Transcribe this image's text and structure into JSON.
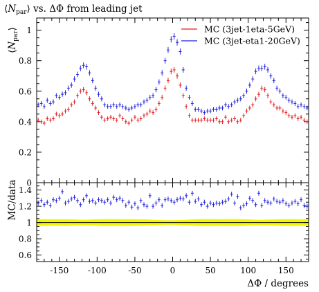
{
  "chart_data": [
    {
      "type": "scatter",
      "panel": "main",
      "title": "⟨N_par⟩ vs. ΔΦ from leading jet",
      "title_parts": {
        "lhs": "⟨",
        "sym": "N",
        "sub": "par",
        "rhs": "⟩ vs. ΔΦ from leading jet"
      },
      "ylabel": "⟨N_par⟩",
      "ylabel_parts": {
        "lhs": "⟨",
        "sym": "N",
        "sub": "par",
        "rhs": "⟩"
      },
      "ylim": [
        0,
        1.08
      ],
      "yticks": [
        "0",
        "0.2",
        "0.4",
        "0.6",
        "0.8",
        "1"
      ],
      "legend_position": "top-right",
      "series": [
        {
          "name": "MC (3jet-1eta-5GeV)",
          "color": "#e41a1c",
          "x": [
            -178,
            -174,
            -170,
            -166,
            -162,
            -158,
            -154,
            -150,
            -146,
            -142,
            -138,
            -134,
            -130,
            -126,
            -122,
            -118,
            -114,
            -110,
            -106,
            -102,
            -98,
            -94,
            -90,
            -86,
            -82,
            -78,
            -74,
            -70,
            -66,
            -62,
            -58,
            -54,
            -50,
            -46,
            -42,
            -38,
            -34,
            -30,
            -26,
            -22,
            -18,
            -14,
            -10,
            -6,
            -2,
            2,
            6,
            10,
            14,
            18,
            22,
            26,
            30,
            34,
            38,
            42,
            46,
            50,
            54,
            58,
            62,
            66,
            70,
            74,
            78,
            82,
            86,
            90,
            94,
            98,
            102,
            106,
            110,
            114,
            118,
            122,
            126,
            130,
            134,
            138,
            142,
            146,
            150,
            154,
            158,
            162,
            166,
            170,
            174,
            178
          ],
          "values": [
            0.41,
            0.4,
            0.39,
            0.42,
            0.41,
            0.42,
            0.45,
            0.44,
            0.45,
            0.47,
            0.48,
            0.51,
            0.53,
            0.57,
            0.6,
            0.61,
            0.59,
            0.55,
            0.52,
            0.49,
            0.46,
            0.43,
            0.41,
            0.42,
            0.43,
            0.42,
            0.41,
            0.44,
            0.42,
            0.4,
            0.39,
            0.41,
            0.43,
            0.41,
            0.42,
            0.44,
            0.45,
            0.47,
            0.46,
            0.48,
            0.52,
            0.56,
            0.62,
            0.67,
            0.73,
            0.74,
            0.7,
            0.64,
            0.57,
            0.5,
            0.44,
            0.41,
            0.41,
            0.41,
            0.41,
            0.42,
            0.41,
            0.41,
            0.41,
            0.42,
            0.4,
            0.4,
            0.43,
            0.4,
            0.41,
            0.42,
            0.4,
            0.41,
            0.44,
            0.47,
            0.49,
            0.51,
            0.55,
            0.58,
            0.62,
            0.61,
            0.57,
            0.53,
            0.51,
            0.49,
            0.49,
            0.47,
            0.46,
            0.44,
            0.43,
            0.44,
            0.42,
            0.43,
            0.41,
            0.4
          ]
        },
        {
          "name": "MC (3jet-eta1-20GeV)",
          "color": "#1f1fe0",
          "x": [
            -178,
            -174,
            -170,
            -166,
            -162,
            -158,
            -154,
            -150,
            -146,
            -142,
            -138,
            -134,
            -130,
            -126,
            -122,
            -118,
            -114,
            -110,
            -106,
            -102,
            -98,
            -94,
            -90,
            -86,
            -82,
            -78,
            -74,
            -70,
            -66,
            -62,
            -58,
            -54,
            -50,
            -46,
            -42,
            -38,
            -34,
            -30,
            -26,
            -22,
            -18,
            -14,
            -10,
            -6,
            -2,
            2,
            6,
            10,
            14,
            18,
            22,
            26,
            30,
            34,
            38,
            42,
            46,
            50,
            54,
            58,
            62,
            66,
            70,
            74,
            78,
            82,
            86,
            90,
            94,
            98,
            102,
            106,
            110,
            114,
            118,
            122,
            126,
            130,
            134,
            138,
            142,
            146,
            150,
            154,
            158,
            162,
            166,
            170,
            174,
            178
          ],
          "values": [
            0.51,
            0.52,
            0.5,
            0.54,
            0.52,
            0.53,
            0.57,
            0.56,
            0.58,
            0.59,
            0.62,
            0.64,
            0.68,
            0.71,
            0.75,
            0.77,
            0.76,
            0.72,
            0.67,
            0.62,
            0.58,
            0.55,
            0.51,
            0.5,
            0.5,
            0.51,
            0.5,
            0.51,
            0.5,
            0.49,
            0.48,
            0.49,
            0.5,
            0.51,
            0.51,
            0.53,
            0.54,
            0.56,
            0.57,
            0.61,
            0.66,
            0.72,
            0.8,
            0.87,
            0.94,
            0.96,
            0.92,
            0.86,
            0.74,
            0.62,
            0.56,
            0.52,
            0.48,
            0.48,
            0.47,
            0.46,
            0.47,
            0.47,
            0.48,
            0.48,
            0.49,
            0.49,
            0.51,
            0.5,
            0.51,
            0.53,
            0.54,
            0.55,
            0.57,
            0.6,
            0.64,
            0.68,
            0.73,
            0.75,
            0.75,
            0.76,
            0.74,
            0.7,
            0.67,
            0.62,
            0.6,
            0.57,
            0.56,
            0.54,
            0.53,
            0.52,
            0.5,
            0.51,
            0.5,
            0.49
          ]
        }
      ]
    },
    {
      "type": "scatter",
      "panel": "ratio",
      "ylabel": "MC/data",
      "xlabel": "ΔΦ / degrees",
      "xlim": [
        -180,
        180
      ],
      "ylim": [
        0.52,
        1.49
      ],
      "xticks": [
        "-150",
        "-100",
        "-50",
        "0",
        "50",
        "100",
        "150"
      ],
      "yticks": [
        "0.6",
        "0.8",
        "1",
        "1.2",
        "1.4"
      ],
      "reference_line": 1.0,
      "reference_band_color": "#f5f500",
      "reference_band_halfwidth": [
        0.04,
        0.04,
        0.041,
        0.041,
        0.04,
        0.039,
        0.039,
        0.04,
        0.04,
        0.041,
        0.04,
        0.039,
        0.038,
        0.036,
        0.035,
        0.034,
        0.035,
        0.036,
        0.038,
        0.039,
        0.04,
        0.041,
        0.042,
        0.042,
        0.043,
        0.042,
        0.042,
        0.041,
        0.041,
        0.042,
        0.042,
        0.041,
        0.04,
        0.04,
        0.039,
        0.039,
        0.038,
        0.036,
        0.034,
        0.032,
        0.03,
        0.029,
        0.028,
        0.028,
        0.028,
        0.028,
        0.029,
        0.03,
        0.032,
        0.034,
        0.036,
        0.038,
        0.04,
        0.041,
        0.042,
        0.042,
        0.043,
        0.043,
        0.042,
        0.042,
        0.041,
        0.041,
        0.042,
        0.042,
        0.043,
        0.043,
        0.042,
        0.041,
        0.04,
        0.039,
        0.038,
        0.036,
        0.035,
        0.034,
        0.034,
        0.035,
        0.036,
        0.037,
        0.038,
        0.039,
        0.04,
        0.041,
        0.041,
        0.042,
        0.042,
        0.041,
        0.041,
        0.04,
        0.04,
        0.04
      ],
      "series": [
        {
          "name": "MC (3jet-eta1-20GeV)",
          "color": "#1f1fe0",
          "x": [
            -178,
            -174,
            -170,
            -166,
            -162,
            -158,
            -154,
            -150,
            -146,
            -142,
            -138,
            -134,
            -130,
            -126,
            -122,
            -118,
            -114,
            -110,
            -106,
            -102,
            -98,
            -94,
            -90,
            -86,
            -82,
            -78,
            -74,
            -70,
            -66,
            -62,
            -58,
            -54,
            -50,
            -46,
            -42,
            -38,
            -34,
            -30,
            -26,
            -22,
            -18,
            -14,
            -10,
            -6,
            -2,
            2,
            6,
            10,
            14,
            18,
            22,
            26,
            30,
            34,
            38,
            42,
            46,
            50,
            54,
            58,
            62,
            66,
            70,
            74,
            78,
            82,
            86,
            90,
            94,
            98,
            102,
            106,
            110,
            114,
            118,
            122,
            126,
            130,
            134,
            138,
            142,
            146,
            150,
            154,
            158,
            162,
            166,
            170,
            174,
            178
          ],
          "values": [
            1.24,
            1.27,
            1.22,
            1.25,
            1.21,
            1.28,
            1.27,
            1.3,
            1.38,
            1.24,
            1.26,
            1.29,
            1.31,
            1.27,
            1.22,
            1.28,
            1.33,
            1.26,
            1.27,
            1.24,
            1.28,
            1.27,
            1.25,
            1.28,
            1.24,
            1.31,
            1.28,
            1.3,
            1.27,
            1.21,
            1.25,
            1.19,
            1.23,
            1.18,
            1.27,
            1.22,
            1.2,
            1.33,
            1.2,
            1.24,
            1.28,
            1.21,
            1.28,
            1.29,
            1.27,
            1.25,
            1.28,
            1.3,
            1.29,
            1.33,
            1.25,
            1.36,
            1.26,
            1.29,
            1.22,
            1.25,
            1.2,
            1.24,
            1.22,
            1.24,
            1.23,
            1.25,
            1.26,
            1.29,
            1.35,
            1.24,
            1.32,
            1.18,
            1.21,
            1.23,
            1.3,
            1.27,
            1.22,
            1.36,
            1.21,
            1.27,
            1.25,
            1.24,
            1.29,
            1.26,
            1.25,
            1.27,
            1.23,
            1.21,
            1.24,
            1.26,
            1.23,
            1.28,
            1.21,
            1.2
          ]
        }
      ]
    }
  ]
}
